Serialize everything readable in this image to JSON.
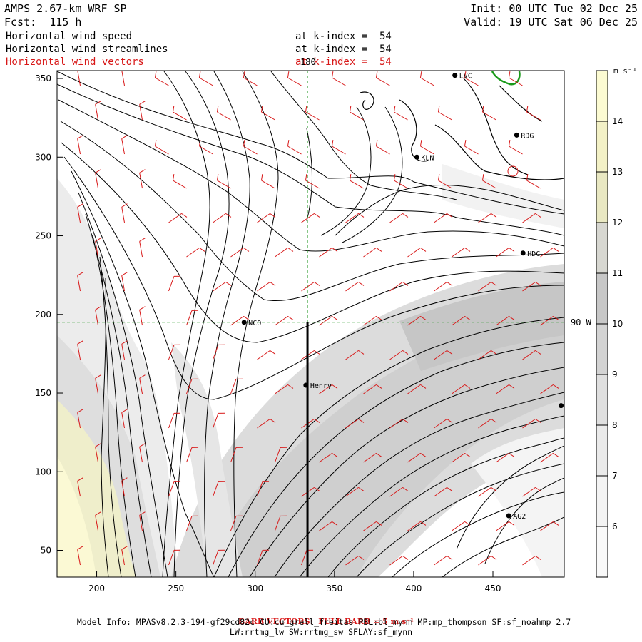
{
  "header": {
    "model_title": "AMPS 2.67-km WRF SP",
    "forecast": "Fcst:  115 h",
    "init": "Init: 00 UTC Tue 02 Dec 25",
    "valid": "Valid: 19 UTC Sat 06 Dec 25",
    "fields": [
      {
        "name": "Horizontal wind speed",
        "level": "at k-index =  54"
      },
      {
        "name": "Horizontal wind streamlines",
        "level": "at k-index =  54"
      },
      {
        "name": "Horizontal wind vectors",
        "level": "at k-index =  54"
      }
    ]
  },
  "colorbar": {
    "units": "m s⁻¹",
    "ticks": [
      "14",
      "13",
      "12",
      "11",
      "10",
      "9",
      "8",
      "7",
      "6"
    ],
    "shade_colors": [
      "#fcfbd2",
      "#f3f1c6",
      "#e9e8c2",
      "#d7d7d1",
      "#c7c7c7",
      "#d3d3d3",
      "#dfdfdf",
      "#eaeaea",
      "#f3f3f3",
      "#f9f9f9"
    ]
  },
  "chart_data": {
    "type": "heatmap",
    "title": "Horizontal wind speed / streamlines / vectors at k-index = 54",
    "xlim": [
      175,
      495
    ],
    "ylim": [
      33,
      355
    ],
    "x_ticks": [
      200,
      250,
      300,
      350,
      400,
      450
    ],
    "y_ticks": [
      50,
      100,
      150,
      200,
      250,
      300,
      350
    ],
    "reference_lines": {
      "meridian_label": "180",
      "meridian_x": 333,
      "parallel_label": "90 W",
      "parallel_y": 195
    },
    "cross_section_x": 333,
    "cross_section_y_range": [
      33,
      195
    ],
    "stations": [
      {
        "name": "LVC",
        "x": 426,
        "y": 352
      },
      {
        "name": "RDG",
        "x": 465,
        "y": 314
      },
      {
        "name": "KLN",
        "x": 402,
        "y": 300
      },
      {
        "name": "HDC",
        "x": 469,
        "y": 239
      },
      {
        "name": "NCO",
        "x": 293,
        "y": 195
      },
      {
        "name": "Henry",
        "x": 332,
        "y": 155
      },
      {
        "name": "",
        "x": 493,
        "y": 142
      },
      {
        "name": "AG2",
        "x": 460,
        "y": 72
      }
    ]
  },
  "footer": {
    "barb_note": "BARB VECTORS:  FULL BARB = 5 m s⁻¹",
    "model_info": "Model Info: MPASv8.2.3-194-gf29cd82c CU:cu_grell_freitas PBL:bl_mynn MP:mp_thompson SF:sf_noahmp 2.7",
    "physics": "LW:rrtmg_lw SW:rrtmg_sw SFLAY:sf_mynn"
  }
}
